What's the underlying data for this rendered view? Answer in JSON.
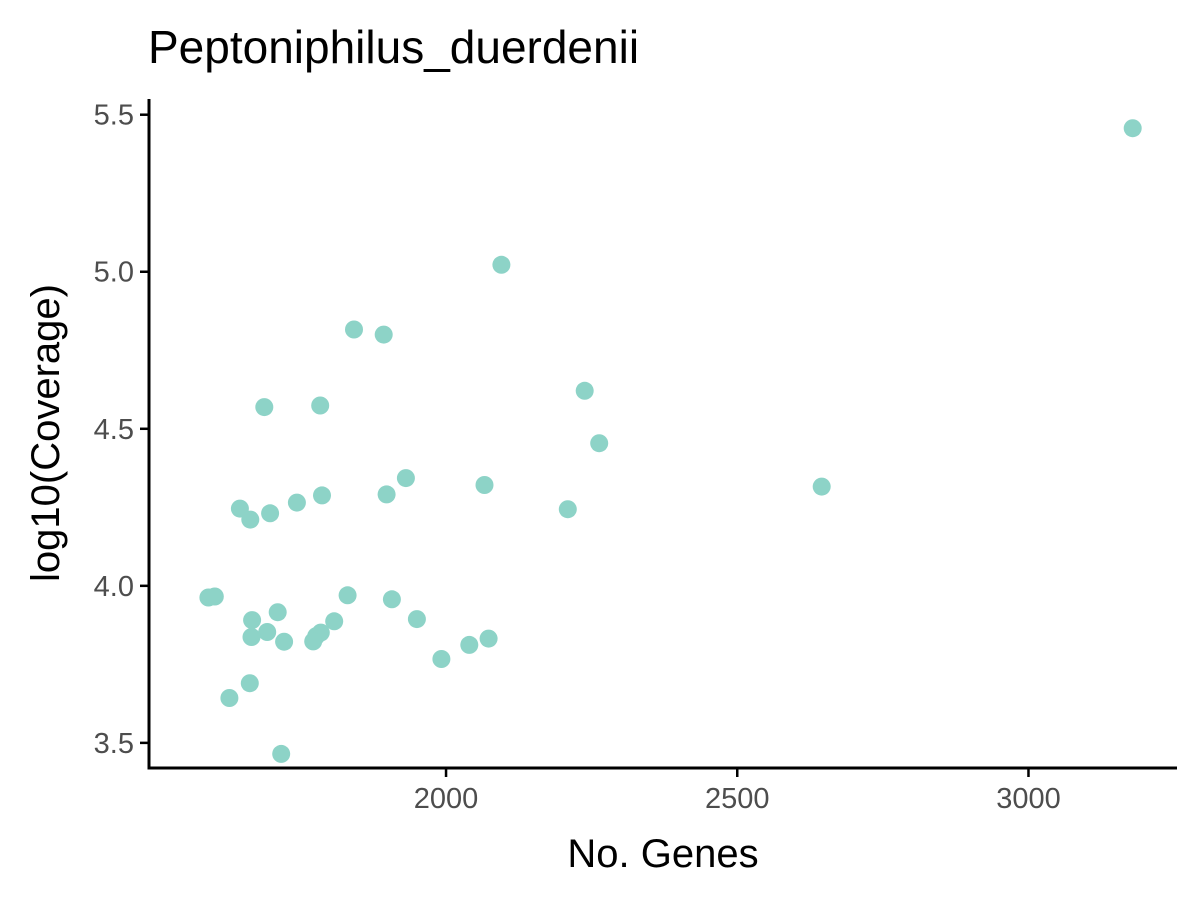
{
  "chart_data": {
    "type": "scatter",
    "title": "Peptoniphilus_duerdenii",
    "xlabel": "No. Genes",
    "ylabel": "log10(Coverage)",
    "xlim": [
      1490,
      3255
    ],
    "ylim": [
      3.42,
      5.55
    ],
    "x_ticks": [
      {
        "value": 2000,
        "label": "2000"
      },
      {
        "value": 2500,
        "label": "2500"
      },
      {
        "value": 3000,
        "label": "3000"
      }
    ],
    "y_ticks": [
      {
        "value": 3.5,
        "label": "3.5"
      },
      {
        "value": 4.0,
        "label": "4.0"
      },
      {
        "value": 4.5,
        "label": "4.5"
      },
      {
        "value": 5.0,
        "label": "5.0"
      },
      {
        "value": 5.5,
        "label": "5.5"
      }
    ],
    "grid": false,
    "legend": "none",
    "point_color": "#8dd3c7",
    "points": [
      {
        "x": 3179,
        "y": 5.457
      },
      {
        "x": 2095,
        "y": 5.022
      },
      {
        "x": 1842,
        "y": 4.816
      },
      {
        "x": 1893,
        "y": 4.8
      },
      {
        "x": 1688,
        "y": 4.569
      },
      {
        "x": 1784,
        "y": 4.574
      },
      {
        "x": 2238,
        "y": 4.621
      },
      {
        "x": 2263,
        "y": 4.454
      },
      {
        "x": 1931,
        "y": 4.343
      },
      {
        "x": 2066,
        "y": 4.321
      },
      {
        "x": 2645,
        "y": 4.316
      },
      {
        "x": 1898,
        "y": 4.291
      },
      {
        "x": 1787,
        "y": 4.288
      },
      {
        "x": 1744,
        "y": 4.265
      },
      {
        "x": 1646,
        "y": 4.246
      },
      {
        "x": 1698,
        "y": 4.231
      },
      {
        "x": 1664,
        "y": 4.211
      },
      {
        "x": 2209,
        "y": 4.244
      },
      {
        "x": 1592,
        "y": 3.963
      },
      {
        "x": 1603,
        "y": 3.966
      },
      {
        "x": 1831,
        "y": 3.97
      },
      {
        "x": 1907,
        "y": 3.957
      },
      {
        "x": 1711,
        "y": 3.916
      },
      {
        "x": 1667,
        "y": 3.891
      },
      {
        "x": 1808,
        "y": 3.887
      },
      {
        "x": 1950,
        "y": 3.894
      },
      {
        "x": 1693,
        "y": 3.853
      },
      {
        "x": 1785,
        "y": 3.851
      },
      {
        "x": 1777,
        "y": 3.84
      },
      {
        "x": 1666,
        "y": 3.837
      },
      {
        "x": 1722,
        "y": 3.822
      },
      {
        "x": 1772,
        "y": 3.823
      },
      {
        "x": 2073,
        "y": 3.832
      },
      {
        "x": 2040,
        "y": 3.812
      },
      {
        "x": 1992,
        "y": 3.767
      },
      {
        "x": 1663,
        "y": 3.69
      },
      {
        "x": 1628,
        "y": 3.643
      },
      {
        "x": 1717,
        "y": 3.465
      }
    ]
  }
}
